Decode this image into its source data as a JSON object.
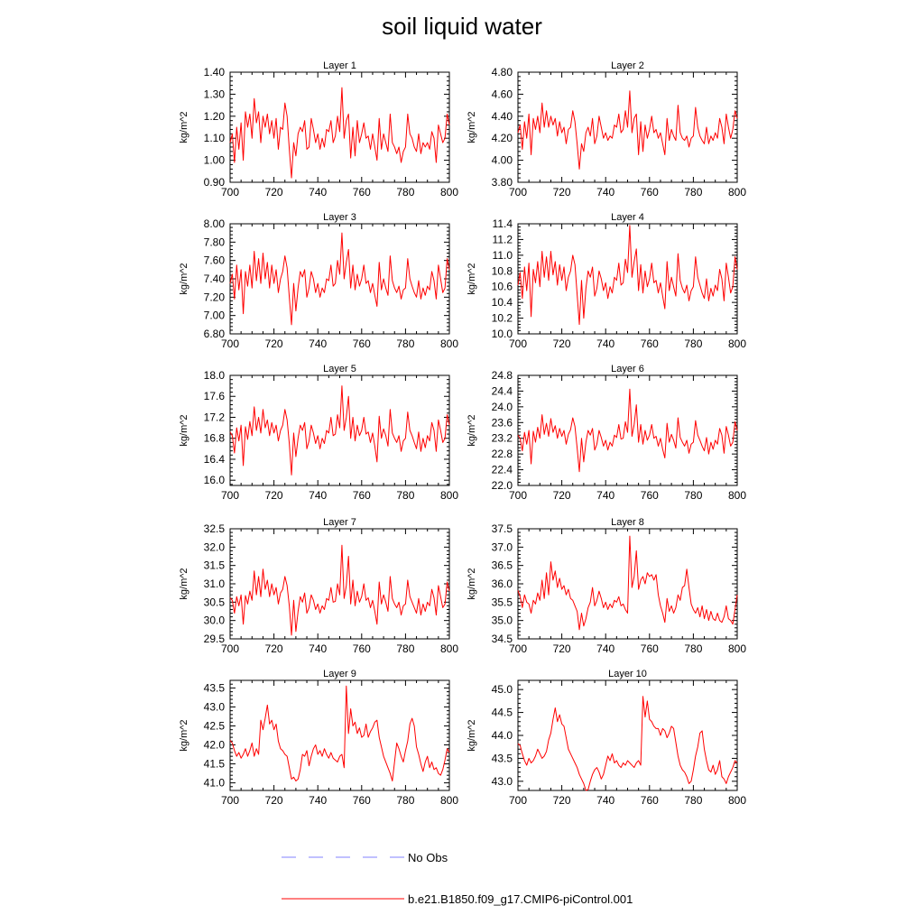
{
  "title": "soil liquid water",
  "colors": {
    "model_line": "#ff0000",
    "obs_line": "#8080ff",
    "axis": "#000000"
  },
  "legend": [
    {
      "label": "No Obs",
      "style": "dashed",
      "color": "#8080ff"
    },
    {
      "label": "b.e21.B1850.f09_g17.CMIP6-piControl.001",
      "style": "solid",
      "color": "#ff0000"
    }
  ],
  "chart_data": [
    {
      "type": "line",
      "title": "Layer 1",
      "xlabel": "",
      "ylabel": "kg/m^2",
      "xlim": [
        700,
        800
      ],
      "xticks": [
        700,
        720,
        740,
        760,
        780,
        800
      ],
      "ylim": [
        0.9,
        1.4
      ],
      "yticks": [
        "0.90",
        "1.00",
        "1.10",
        "1.20",
        "1.30",
        "1.40"
      ],
      "x_start": 700,
      "values": [
        1.08,
        1.12,
        0.99,
        1.15,
        1.05,
        1.17,
        1.0,
        1.22,
        1.15,
        1.21,
        1.1,
        1.28,
        1.17,
        1.22,
        1.08,
        1.2,
        1.15,
        1.21,
        1.12,
        1.18,
        1.1,
        1.19,
        1.05,
        1.15,
        1.14,
        1.26,
        1.2,
        1.05,
        0.92,
        1.08,
        1.02,
        1.12,
        1.15,
        1.13,
        1.18,
        1.05,
        1.06,
        1.19,
        1.14,
        1.08,
        1.12,
        1.05,
        1.1,
        1.06,
        1.14,
        1.13,
        1.18,
        1.08,
        1.11,
        1.2,
        1.13,
        1.33,
        1.1,
        1.18,
        1.21,
        1.01,
        1.15,
        1.02,
        1.18,
        1.08,
        1.12,
        1.17,
        1.1,
        1.11,
        1.05,
        1.12,
        1.06,
        1.0,
        1.19,
        1.05,
        1.12,
        1.08,
        1.04,
        1.21,
        1.08,
        1.06,
        1.03,
        1.06,
        0.99,
        1.04,
        1.06,
        1.21,
        1.12,
        1.1,
        1.06,
        1.04,
        1.12,
        1.03,
        1.08,
        1.06,
        1.08,
        1.05,
        1.13,
        1.1,
        0.99,
        1.16,
        1.12,
        1.08,
        1.1,
        1.21,
        1.16
      ]
    },
    {
      "type": "line",
      "title": "Layer 2",
      "xlabel": "",
      "ylabel": "kg/m^2",
      "xlim": [
        700,
        800
      ],
      "xticks": [
        700,
        720,
        740,
        760,
        780,
        800
      ],
      "ylim": [
        3.8,
        4.8
      ],
      "yticks": [
        "3.80",
        "4.00",
        "4.20",
        "4.40",
        "4.60",
        "4.80"
      ],
      "x_start": 700,
      "values": [
        4.25,
        4.32,
        4.1,
        4.35,
        4.2,
        4.42,
        4.05,
        4.38,
        4.28,
        4.4,
        4.25,
        4.52,
        4.3,
        4.45,
        4.3,
        4.4,
        4.32,
        4.38,
        4.22,
        4.35,
        4.25,
        4.3,
        4.15,
        4.28,
        4.3,
        4.45,
        4.35,
        4.15,
        3.92,
        4.15,
        4.08,
        4.25,
        4.3,
        4.22,
        4.38,
        4.15,
        4.22,
        4.4,
        4.3,
        4.2,
        4.25,
        4.18,
        4.22,
        4.2,
        4.32,
        4.3,
        4.42,
        4.25,
        4.28,
        4.45,
        4.3,
        4.63,
        4.25,
        4.38,
        4.42,
        4.05,
        4.35,
        4.08,
        4.32,
        4.2,
        4.28,
        4.4,
        4.25,
        4.28,
        4.2,
        4.25,
        4.15,
        4.05,
        4.38,
        4.18,
        4.28,
        4.22,
        4.18,
        4.5,
        4.25,
        4.2,
        4.18,
        4.22,
        4.12,
        4.2,
        4.22,
        4.48,
        4.3,
        4.22,
        4.18,
        4.15,
        4.3,
        4.15,
        4.22,
        4.18,
        4.25,
        4.2,
        4.38,
        4.3,
        4.15,
        4.42,
        4.3,
        4.2,
        4.28,
        4.45,
        4.38
      ]
    },
    {
      "type": "line",
      "title": "Layer 3",
      "xlabel": "",
      "ylabel": "kg/m^2",
      "xlim": [
        700,
        800
      ],
      "xticks": [
        700,
        720,
        740,
        760,
        780,
        800
      ],
      "ylim": [
        6.8,
        8.0
      ],
      "yticks": [
        "6.80",
        "7.00",
        "7.20",
        "7.40",
        "7.60",
        "7.80",
        "8.00"
      ],
      "x_start": 700,
      "values": [
        7.35,
        7.45,
        7.18,
        7.55,
        7.28,
        7.5,
        7.02,
        7.48,
        7.32,
        7.55,
        7.3,
        7.7,
        7.38,
        7.62,
        7.35,
        7.68,
        7.4,
        7.58,
        7.3,
        7.55,
        7.35,
        7.5,
        7.25,
        7.4,
        7.48,
        7.65,
        7.52,
        7.2,
        6.9,
        7.35,
        7.05,
        7.3,
        7.48,
        7.42,
        7.5,
        7.2,
        7.3,
        7.48,
        7.4,
        7.25,
        7.35,
        7.2,
        7.3,
        7.25,
        7.4,
        7.38,
        7.55,
        7.32,
        7.35,
        7.6,
        7.45,
        7.9,
        7.4,
        7.58,
        7.72,
        7.3,
        7.55,
        7.28,
        7.45,
        7.32,
        7.4,
        7.55,
        7.35,
        7.38,
        7.25,
        7.35,
        7.22,
        7.1,
        7.58,
        7.28,
        7.4,
        7.3,
        7.22,
        7.65,
        7.38,
        7.3,
        7.25,
        7.32,
        7.18,
        7.28,
        7.3,
        7.62,
        7.4,
        7.32,
        7.25,
        7.2,
        7.38,
        7.18,
        7.3,
        7.22,
        7.32,
        7.28,
        7.48,
        7.38,
        7.18,
        7.55,
        7.4,
        7.25,
        7.3,
        7.62,
        7.5
      ]
    },
    {
      "type": "line",
      "title": "Layer 4",
      "xlabel": "",
      "ylabel": "kg/m^2",
      "xlim": [
        700,
        800
      ],
      "xticks": [
        700,
        720,
        740,
        760,
        780,
        800
      ],
      "ylim": [
        10.0,
        11.4
      ],
      "yticks": [
        "10.0",
        "10.2",
        "10.4",
        "10.6",
        "10.8",
        "11.0",
        "11.2",
        "11.4"
      ],
      "x_start": 700,
      "values": [
        10.62,
        10.78,
        10.45,
        10.85,
        10.55,
        10.9,
        10.22,
        10.82,
        10.65,
        10.92,
        10.6,
        11.05,
        10.72,
        10.98,
        10.68,
        11.05,
        10.75,
        10.92,
        10.62,
        10.88,
        10.68,
        10.85,
        10.55,
        10.72,
        10.8,
        11.0,
        10.88,
        10.5,
        10.12,
        10.68,
        10.2,
        10.58,
        10.8,
        10.72,
        10.85,
        10.48,
        10.58,
        10.8,
        10.7,
        10.55,
        10.65,
        10.45,
        10.6,
        10.52,
        10.72,
        10.68,
        10.9,
        10.62,
        10.65,
        10.95,
        10.78,
        11.38,
        10.72,
        10.92,
        11.08,
        10.55,
        10.88,
        10.52,
        10.8,
        10.6,
        10.7,
        10.9,
        10.65,
        10.68,
        10.52,
        10.65,
        10.48,
        10.32,
        10.92,
        10.55,
        10.72,
        10.6,
        10.48,
        11.02,
        10.68,
        10.58,
        10.52,
        10.62,
        10.42,
        10.55,
        10.6,
        10.98,
        10.72,
        10.62,
        10.52,
        10.45,
        10.7,
        10.42,
        10.58,
        10.48,
        10.62,
        10.55,
        10.82,
        10.7,
        10.42,
        10.9,
        10.72,
        10.52,
        10.6,
        10.98,
        10.82
      ]
    },
    {
      "type": "line",
      "title": "Layer 5",
      "xlabel": "",
      "ylabel": "kg/m^2",
      "xlim": [
        700,
        800
      ],
      "xticks": [
        700,
        720,
        740,
        760,
        780,
        800
      ],
      "ylim": [
        15.9,
        18.0
      ],
      "yticks": [
        "16.0",
        "16.4",
        "16.8",
        "17.2",
        "17.6",
        "18.0"
      ],
      "x_start": 700,
      "values": [
        16.92,
        16.85,
        16.52,
        17.0,
        16.75,
        17.05,
        16.28,
        17.02,
        16.78,
        17.12,
        16.85,
        17.4,
        16.95,
        17.2,
        16.9,
        17.35,
        17.0,
        17.15,
        16.85,
        17.1,
        16.9,
        17.05,
        16.75,
        16.95,
        17.05,
        17.35,
        17.15,
        16.7,
        16.1,
        16.9,
        16.45,
        16.8,
        17.05,
        16.95,
        17.1,
        16.6,
        16.75,
        17.05,
        16.9,
        16.7,
        16.85,
        16.6,
        16.8,
        16.7,
        16.95,
        16.9,
        17.2,
        16.85,
        16.88,
        17.25,
        17.0,
        17.8,
        16.95,
        17.2,
        17.6,
        16.8,
        17.2,
        16.75,
        17.05,
        16.85,
        16.95,
        17.2,
        16.88,
        16.92,
        16.72,
        16.9,
        16.65,
        16.35,
        17.22,
        16.8,
        16.98,
        16.85,
        16.65,
        17.35,
        16.9,
        16.8,
        16.72,
        16.85,
        16.55,
        16.75,
        16.8,
        17.3,
        16.95,
        16.85,
        16.72,
        16.6,
        16.92,
        16.55,
        16.8,
        16.62,
        16.85,
        16.75,
        17.1,
        16.95,
        16.55,
        17.15,
        16.95,
        16.72,
        16.8,
        17.25,
        17.05
      ]
    },
    {
      "type": "line",
      "title": "Layer 6",
      "xlabel": "",
      "ylabel": "kg/m^2",
      "xlim": [
        700,
        800
      ],
      "xticks": [
        700,
        720,
        740,
        760,
        780,
        800
      ],
      "ylim": [
        22.0,
        24.8
      ],
      "yticks": [
        "22.0",
        "22.4",
        "22.8",
        "23.2",
        "23.6",
        "24.0",
        "24.4",
        "24.8"
      ],
      "x_start": 700,
      "values": [
        23.28,
        23.2,
        22.88,
        23.35,
        23.05,
        23.4,
        22.55,
        23.38,
        23.1,
        23.48,
        23.2,
        23.8,
        23.3,
        23.58,
        23.25,
        23.7,
        23.35,
        23.52,
        23.2,
        23.45,
        23.25,
        23.4,
        23.05,
        23.3,
        23.42,
        23.72,
        23.5,
        22.95,
        22.35,
        23.2,
        22.6,
        23.1,
        23.4,
        23.28,
        23.45,
        22.9,
        23.05,
        23.4,
        23.22,
        23.0,
        23.15,
        22.9,
        23.1,
        23.0,
        23.28,
        23.22,
        23.55,
        23.18,
        23.2,
        23.62,
        23.35,
        24.45,
        23.25,
        23.55,
        24.05,
        23.1,
        23.55,
        23.05,
        23.4,
        23.15,
        23.28,
        23.55,
        23.2,
        23.25,
        23.0,
        23.2,
        22.92,
        22.7,
        23.58,
        23.1,
        23.3,
        23.15,
        22.95,
        23.72,
        23.22,
        23.1,
        23.0,
        23.15,
        22.82,
        23.05,
        23.1,
        23.65,
        23.28,
        23.15,
        23.0,
        22.88,
        23.22,
        22.8,
        23.1,
        22.92,
        23.15,
        23.05,
        23.45,
        23.28,
        22.82,
        23.5,
        23.28,
        23.0,
        23.1,
        23.62,
        23.4
      ]
    },
    {
      "type": "line",
      "title": "Layer 7",
      "xlabel": "",
      "ylabel": "kg/m^2",
      "xlim": [
        700,
        800
      ],
      "xticks": [
        700,
        720,
        740,
        760,
        780,
        800
      ],
      "ylim": [
        29.5,
        32.5
      ],
      "yticks": [
        "29.5",
        "30.0",
        "30.5",
        "31.0",
        "31.5",
        "32.0",
        "32.5"
      ],
      "x_start": 700,
      "values": [
        30.62,
        30.55,
        30.2,
        30.65,
        30.4,
        30.7,
        29.9,
        30.68,
        30.45,
        30.8,
        30.55,
        31.35,
        30.7,
        31.2,
        30.65,
        31.4,
        30.85,
        31.1,
        30.65,
        31.0,
        30.7,
        30.9,
        30.45,
        30.75,
        30.85,
        31.2,
        30.95,
        30.4,
        29.6,
        30.55,
        29.7,
        30.25,
        30.65,
        30.5,
        30.75,
        30.2,
        30.35,
        30.7,
        30.55,
        30.3,
        30.45,
        30.2,
        30.4,
        30.3,
        30.6,
        30.55,
        30.9,
        30.5,
        30.52,
        31.0,
        30.7,
        32.05,
        30.6,
        30.95,
        31.75,
        30.45,
        31.1,
        30.4,
        30.8,
        30.5,
        30.65,
        31.0,
        30.55,
        30.62,
        30.35,
        30.55,
        30.25,
        29.9,
        31.05,
        30.45,
        30.7,
        30.5,
        30.25,
        31.2,
        30.6,
        30.45,
        30.35,
        30.5,
        30.15,
        30.4,
        30.45,
        31.1,
        30.65,
        30.5,
        30.35,
        30.2,
        30.6,
        30.15,
        30.45,
        30.25,
        30.5,
        30.4,
        30.85,
        30.62,
        30.15,
        30.95,
        30.65,
        30.35,
        30.45,
        31.05,
        30.8
      ]
    },
    {
      "type": "line",
      "title": "Layer 8",
      "xlabel": "",
      "ylabel": "kg/m^2",
      "xlim": [
        700,
        800
      ],
      "xticks": [
        700,
        720,
        740,
        760,
        780,
        800
      ],
      "ylim": [
        34.5,
        37.5
      ],
      "yticks": [
        "34.5",
        "35.0",
        "35.5",
        "36.0",
        "36.5",
        "37.0",
        "37.5"
      ],
      "x_start": 700,
      "values": [
        35.82,
        35.65,
        35.35,
        35.7,
        35.5,
        35.45,
        35.2,
        35.55,
        35.45,
        35.75,
        35.55,
        36.1,
        35.6,
        36.3,
        35.7,
        36.6,
        36.1,
        36.35,
        35.9,
        36.15,
        35.85,
        35.95,
        35.7,
        35.85,
        35.6,
        35.55,
        35.4,
        35.25,
        34.75,
        35.2,
        34.85,
        35.05,
        35.35,
        35.5,
        35.9,
        35.4,
        35.55,
        35.8,
        35.6,
        35.35,
        35.5,
        35.3,
        35.45,
        35.35,
        35.55,
        35.5,
        35.65,
        35.4,
        35.45,
        35.3,
        35.2,
        37.3,
        35.9,
        36.2,
        36.9,
        35.85,
        36.1,
        36.2,
        36.0,
        36.3,
        36.2,
        36.25,
        36.1,
        36.25,
        35.7,
        35.4,
        35.2,
        34.95,
        35.6,
        35.25,
        35.4,
        35.2,
        35.35,
        35.7,
        35.55,
        35.9,
        35.95,
        36.4,
        35.9,
        35.45,
        35.3,
        35.2,
        35.35,
        35.1,
        35.4,
        35.05,
        35.3,
        35.0,
        35.25,
        35.05,
        35.0,
        35.2,
        35.0,
        34.95,
        35.1,
        35.4,
        35.05,
        35.0,
        34.9,
        35.3,
        35.7
      ]
    },
    {
      "type": "line",
      "title": "Layer 9",
      "xlabel": "",
      "ylabel": "kg/m^2",
      "xlim": [
        700,
        800
      ],
      "xticks": [
        700,
        720,
        740,
        760,
        780,
        800
      ],
      "ylim": [
        40.8,
        43.7
      ],
      "yticks": [
        "41.0",
        "41.5",
        "42.0",
        "42.5",
        "43.0",
        "43.5"
      ],
      "x_start": 700,
      "values": [
        42.12,
        42.05,
        41.85,
        41.7,
        41.8,
        41.65,
        41.75,
        41.9,
        41.7,
        41.85,
        42.05,
        41.7,
        41.9,
        41.75,
        42.65,
        42.4,
        42.7,
        43.05,
        42.55,
        42.65,
        42.4,
        42.55,
        42.1,
        41.9,
        41.85,
        41.75,
        41.7,
        41.4,
        41.1,
        41.15,
        41.05,
        41.1,
        41.35,
        41.75,
        41.7,
        41.85,
        41.45,
        41.7,
        41.9,
        42.0,
        41.75,
        41.85,
        41.7,
        41.9,
        41.75,
        41.65,
        41.8,
        41.65,
        41.6,
        41.55,
        41.7,
        41.75,
        41.4,
        43.55,
        42.3,
        42.95,
        42.5,
        42.6,
        42.3,
        42.45,
        42.2,
        42.25,
        42.55,
        42.2,
        42.35,
        42.45,
        42.6,
        42.65,
        42.2,
        41.95,
        41.7,
        41.55,
        41.4,
        41.25,
        41.05,
        41.55,
        42.05,
        41.9,
        41.7,
        41.55,
        41.85,
        42.1,
        42.55,
        42.7,
        42.5,
        41.95,
        41.75,
        41.5,
        41.3,
        41.55,
        41.7,
        41.4,
        41.55,
        41.35,
        41.4,
        41.25,
        41.2,
        41.35,
        41.6,
        41.9,
        41.8
      ]
    },
    {
      "type": "line",
      "title": "Layer 10",
      "xlabel": "",
      "ylabel": "kg/m^2",
      "xlim": [
        700,
        800
      ],
      "xticks": [
        700,
        720,
        740,
        760,
        780,
        800
      ],
      "ylim": [
        42.8,
        45.2
      ],
      "yticks": [
        "43.0",
        "43.5",
        "44.0",
        "44.5",
        "45.0"
      ],
      "x_start": 700,
      "values": [
        43.82,
        43.78,
        43.6,
        43.45,
        43.35,
        43.5,
        43.4,
        43.45,
        43.55,
        43.7,
        43.6,
        43.5,
        43.55,
        43.65,
        43.9,
        44.05,
        44.35,
        44.6,
        44.3,
        44.45,
        44.25,
        44.2,
        43.95,
        43.7,
        43.6,
        43.5,
        43.4,
        43.3,
        43.15,
        43.05,
        42.95,
        42.8,
        42.82,
        43.0,
        43.15,
        43.25,
        43.3,
        43.2,
        43.05,
        43.15,
        43.35,
        43.55,
        43.45,
        43.6,
        43.4,
        43.45,
        43.35,
        43.3,
        43.4,
        43.35,
        43.45,
        43.4,
        43.35,
        43.3,
        43.4,
        43.45,
        43.35,
        44.85,
        44.4,
        44.75,
        44.35,
        44.3,
        44.2,
        44.15,
        44.15,
        44.0,
        44.15,
        44.1,
        43.95,
        44.05,
        44.2,
        44.15,
        43.85,
        43.55,
        43.35,
        43.25,
        43.2,
        43.1,
        42.95,
        43.0,
        43.25,
        43.55,
        43.75,
        44.05,
        44.1,
        43.7,
        43.45,
        43.25,
        43.2,
        43.35,
        43.15,
        43.25,
        43.45,
        43.1,
        43.05,
        42.95,
        43.1,
        43.2,
        43.3,
        43.45,
        43.4
      ]
    }
  ]
}
